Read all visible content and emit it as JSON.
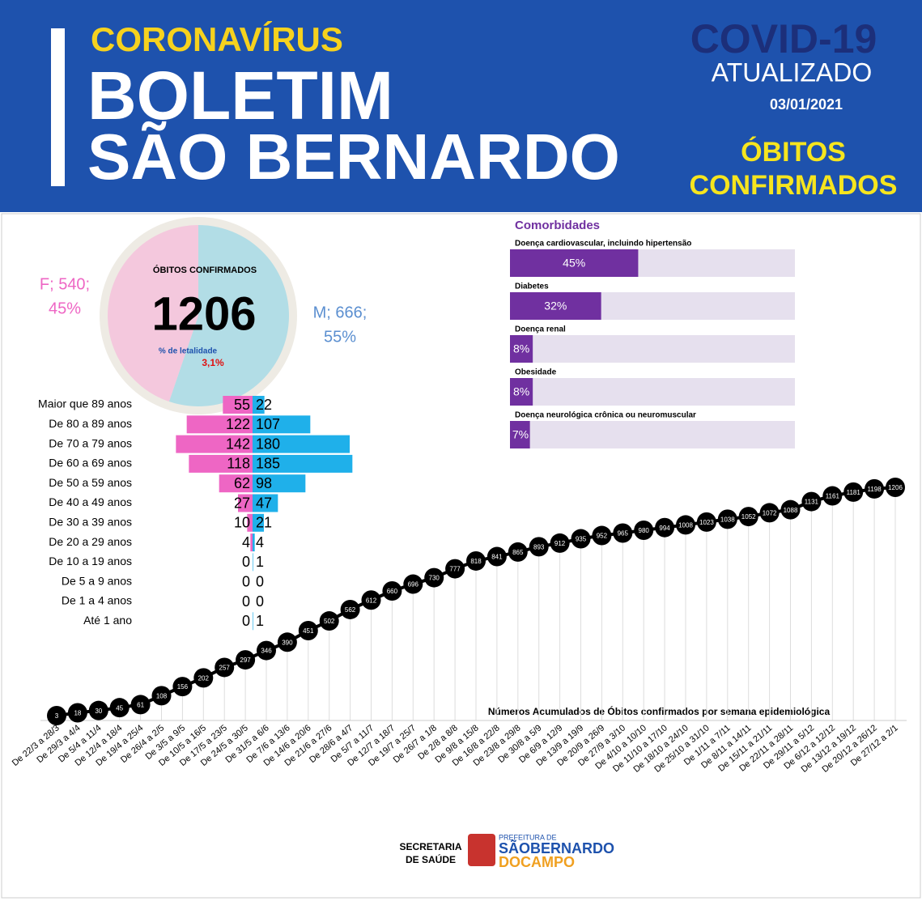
{
  "header": {
    "kicker": "CORONAVÍRUS",
    "title_line1": "BOLETIM",
    "title_line2": "SÃO BERNARDO",
    "badge": "COVID-19",
    "badge_sub": "ATUALIZADO",
    "date": "03/01/2021",
    "section_line1": "ÓBITOS",
    "section_line2": "CONFIRMADOS"
  },
  "summary": {
    "label": "ÓBITOS CONFIRMADOS",
    "total": 1206,
    "lethality_label": "% de letalidade",
    "lethality": "3,1%"
  },
  "chart_data": [
    {
      "type": "pie",
      "categories": [
        "F",
        "M"
      ],
      "values": [
        540,
        666
      ],
      "value_labels": [
        "F; 540;",
        "M; 666;"
      ],
      "percents": [
        45,
        55
      ],
      "percent_labels": [
        "45%",
        "55%"
      ],
      "colors": [
        "#f4c8dd",
        "#b2dde6"
      ],
      "label_colors": [
        "#ee66c4",
        "#5b8fd0"
      ]
    },
    {
      "type": "pyramid",
      "categories": [
        "Maior que 89 anos",
        "De 80 a 89 anos",
        "De 70 a 79 anos",
        "De 60 a 69 anos",
        "De 50 a 59 anos",
        "De 40 a 49 anos",
        "De 30 a 39 anos",
        "De 20 a 29 anos",
        "De 10 a 19 anos",
        "De 5 a 9 anos",
        "De 1 a 4 anos",
        "Até 1 ano"
      ],
      "series": [
        {
          "color": "#ee66c4",
          "values": [
            55,
            122,
            142,
            118,
            62,
            27,
            10,
            4,
            0,
            0,
            0,
            0
          ]
        },
        {
          "color": "#1fb0ea",
          "values": [
            22,
            107,
            180,
            185,
            98,
            47,
            21,
            4,
            1,
            0,
            0,
            1
          ]
        }
      ]
    },
    {
      "type": "hbar",
      "title": "Comorbidades",
      "categories": [
        "Doença cardiovascular, incluindo hipertensão",
        "Diabetes",
        "Doença renal",
        "Obesidade",
        "Doença neurológica crônica ou neuromuscular"
      ],
      "values": [
        45,
        32,
        8,
        8,
        7
      ],
      "value_labels": [
        "45%",
        "32%",
        "8%",
        "8%",
        "7%"
      ],
      "xlim": [
        0,
        100
      ],
      "color": "#7030a0",
      "track_color": "#e6e0ee"
    },
    {
      "type": "line",
      "title": "Números Acumulados de Óbitos confirmados por semana epidemiológica",
      "categories": [
        "De 22/3 a 28/3",
        "De 29/3 a 4/4",
        "De 5/4 a 11/4",
        "De 12/4 a 18/4",
        "De 19/4 a 25/4",
        "De 26/4 a 2/5",
        "De 3/5 a 9/5",
        "De 10/5 a 16/5",
        "De 17/5 a 23/5",
        "De 24/5 a 30/5",
        "De 31/5 a 6/6",
        "De 7/6 a 13/6",
        "De 14/6 a 20/6",
        "De 21/6 a 27/6",
        "De 28/6 a 4/7",
        "De 5/7 a 11/7",
        "De 12/7 a 18/7",
        "De 19/7 a 25/7",
        "De 26/7 a 1/8",
        "De 2/8 a 8/8",
        "De 9/8 a 15/8",
        "De 16/8 a 22/8",
        "De 23/8 a 29/8",
        "De 30/8 a 5/9",
        "De 6/9 a 12/9",
        "De 13/9 a 19/9",
        "De 20/9 a 26/9",
        "De 27/9 a 3/10",
        "De 4/10 a 10/10",
        "De 11/10 a 17/10",
        "De 18/10 a 24/10",
        "De 25/10 a 31/10",
        "De 1/11 a 7/11",
        "De 8/11 a 14/11",
        "De 15/11 a 21/11",
        "De 22/11 a 28/11",
        "De 29/11 a 5/12",
        "De 6/12 a 12/12",
        "De 13/12 a 19/12",
        "De 20/12 a 26/12",
        "De 27/12 a 2/1"
      ],
      "values": [
        3,
        18,
        30,
        45,
        61,
        108,
        156,
        202,
        257,
        297,
        346,
        390,
        451,
        502,
        562,
        612,
        660,
        696,
        730,
        777,
        818,
        841,
        865,
        893,
        912,
        935,
        952,
        965,
        980,
        994,
        1008,
        1023,
        1038,
        1052,
        1072,
        1088,
        1131,
        1161,
        1181,
        1198,
        1206
      ],
      "color": "#000000"
    }
  ],
  "footer": {
    "dept_line1": "SECRETARIA",
    "dept_line2": "DE SAÚDE",
    "city_pre": "PREFEITURA DE",
    "city_line1": "SÃOBERNARDO",
    "city_line2": "DOCAMPO"
  }
}
